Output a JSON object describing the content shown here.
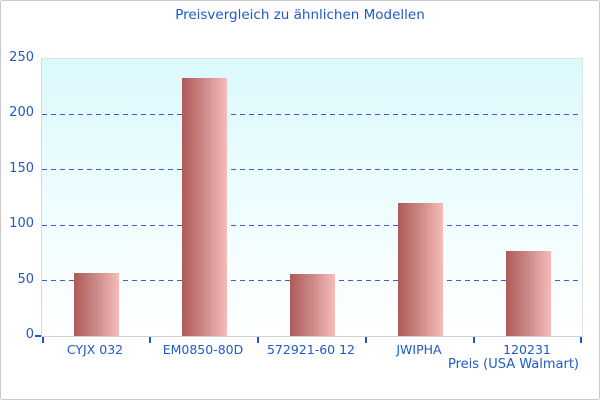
{
  "title": "Preisvergleich zu ähnlichen Modellen",
  "colors": {
    "accent_text": "#1e5ac8",
    "gridline": "#3c5ec6",
    "tick": "#2156c8",
    "bar_gradient_left": "#ae5a58",
    "bar_gradient_right": "#f5bcba",
    "plot_background_top": "#dcf9fc",
    "plot_background_bottom": "#ffffff",
    "window_border": "#c9c9c9"
  },
  "chart_data": {
    "type": "bar",
    "title": "Preisvergleich zu ähnlichen Modellen",
    "categories": [
      "CYJX 032",
      "EM0850-80D",
      "572921-60 12",
      "JWIPHA",
      "120231"
    ],
    "values": [
      57,
      233,
      56,
      120,
      77
    ],
    "xlabel": "Preis (USA Walmart)",
    "ylabel": "",
    "ylim": [
      0,
      250
    ],
    "yticks": [
      0,
      50,
      100,
      150,
      200,
      250
    ],
    "grid": "horizontal dashed lines at 50, 100, 150, 200",
    "legend_position": "none",
    "bar_orientation": "vertical"
  }
}
